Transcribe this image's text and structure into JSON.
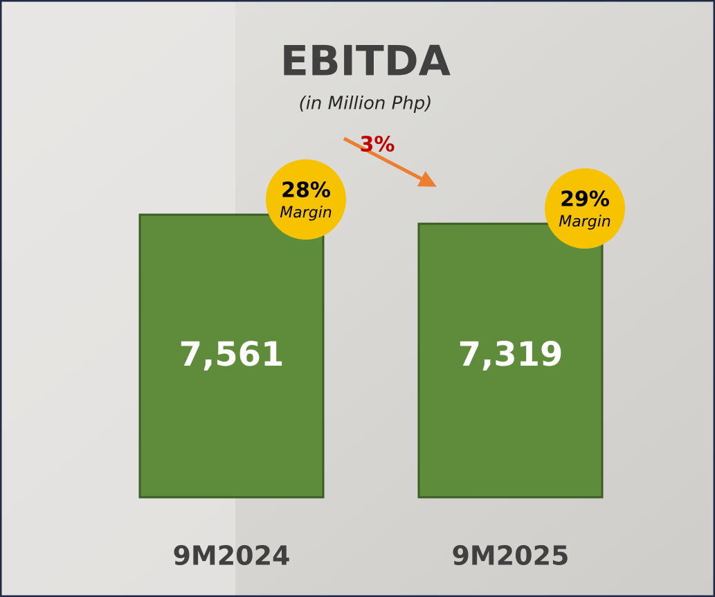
{
  "chart_data": {
    "type": "bar",
    "title": "EBITDA",
    "subtitle": "(in Million Php)",
    "categories": [
      "9M2024",
      "9M2025"
    ],
    "values": [
      7561,
      7319
    ],
    "value_labels": [
      "7,561",
      "7,319"
    ],
    "color": "#5e8c3a",
    "margins": [
      {
        "value": 28,
        "label": "28%"
      },
      {
        "value": 29,
        "label": "29%"
      }
    ],
    "margin_label": "Margin",
    "change": {
      "value": 3,
      "label": "3%"
    }
  }
}
